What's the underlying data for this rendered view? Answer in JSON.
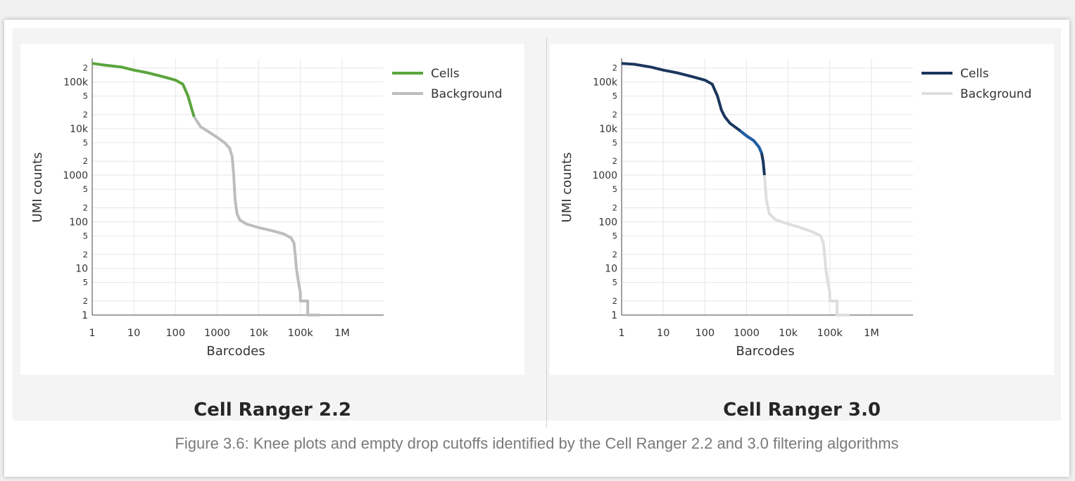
{
  "caption": "Figure 3.6: Knee plots and empty drop cutoffs identified by the Cell Ranger 2.2 and 3.0 filtering algorithms",
  "chart_data": [
    {
      "type": "line",
      "panel_title": "Cell Ranger 2.2",
      "xlabel": "Barcodes",
      "ylabel": "UMI counts",
      "x_scale": "log",
      "y_scale": "log",
      "xlim": [
        1,
        10000000
      ],
      "ylim": [
        1,
        300000
      ],
      "x_ticks": [
        "1",
        "10",
        "100",
        "1000",
        "10k",
        "100k",
        "1M"
      ],
      "y_ticks": [
        "1",
        "2",
        "5",
        "10",
        "2",
        "5",
        "100",
        "2",
        "5",
        "1000",
        "2",
        "5",
        "10k",
        "2",
        "5",
        "100k",
        "2"
      ],
      "grid": true,
      "legend_position": "top-right",
      "colors": {
        "cells": "#5aa43c",
        "background": "#bdbdbd"
      },
      "series": [
        {
          "name": "Cells",
          "x": [
            1,
            2,
            5,
            10,
            20,
            50,
            100,
            150,
            200,
            250,
            280
          ],
          "y": [
            250000,
            230000,
            210000,
            180000,
            160000,
            130000,
            110000,
            90000,
            50000,
            25000,
            18000
          ]
        },
        {
          "name": "Background",
          "x": [
            280,
            400,
            700,
            1000,
            1500,
            2000,
            2300,
            2500,
            2700,
            3000,
            3500,
            5000,
            10000,
            20000,
            40000,
            60000,
            70000,
            75000,
            80000,
            90000,
            100000,
            100000,
            120000,
            120000,
            150000,
            150000,
            300000
          ],
          "y": [
            18000,
            11000,
            8000,
            6500,
            5000,
            3800,
            2500,
            1000,
            300,
            150,
            110,
            90,
            75,
            65,
            55,
            45,
            35,
            20,
            10,
            5,
            3,
            2,
            2,
            2,
            2,
            1,
            1
          ]
        }
      ]
    },
    {
      "type": "line",
      "panel_title": "Cell Ranger 3.0",
      "xlabel": "Barcodes",
      "ylabel": "UMI counts",
      "x_scale": "log",
      "y_scale": "log",
      "xlim": [
        1,
        10000000
      ],
      "ylim": [
        1,
        300000
      ],
      "x_ticks": [
        "1",
        "10",
        "100",
        "1000",
        "10k",
        "100k",
        "1M"
      ],
      "y_ticks": [
        "1",
        "2",
        "5",
        "10",
        "2",
        "5",
        "100",
        "2",
        "5",
        "1000",
        "2",
        "5",
        "10k",
        "2",
        "5",
        "100k",
        "2"
      ],
      "grid": true,
      "legend_position": "top-right",
      "colors": {
        "cells": "#1b365d",
        "cells_mid": "#1f5fa8",
        "background": "#dedede"
      },
      "series": [
        {
          "name": "Cells",
          "x": [
            1,
            2,
            5,
            10,
            20,
            50,
            100,
            150,
            200,
            250,
            300,
            400,
            700,
            1000,
            1500,
            2000,
            2300,
            2500,
            2700
          ],
          "y": [
            250000,
            240000,
            210000,
            180000,
            160000,
            130000,
            110000,
            90000,
            50000,
            25000,
            18000,
            13000,
            9000,
            7000,
            5500,
            4000,
            3000,
            2000,
            1000
          ]
        },
        {
          "name": "Background",
          "x": [
            2700,
            3000,
            3500,
            5000,
            10000,
            20000,
            40000,
            60000,
            70000,
            75000,
            80000,
            90000,
            100000,
            100000,
            120000,
            120000,
            150000,
            150000,
            300000
          ],
          "y": [
            1000,
            300,
            150,
            110,
            90,
            75,
            60,
            50,
            35,
            20,
            10,
            5,
            3,
            2,
            2,
            2,
            2,
            1,
            1
          ]
        }
      ]
    }
  ]
}
